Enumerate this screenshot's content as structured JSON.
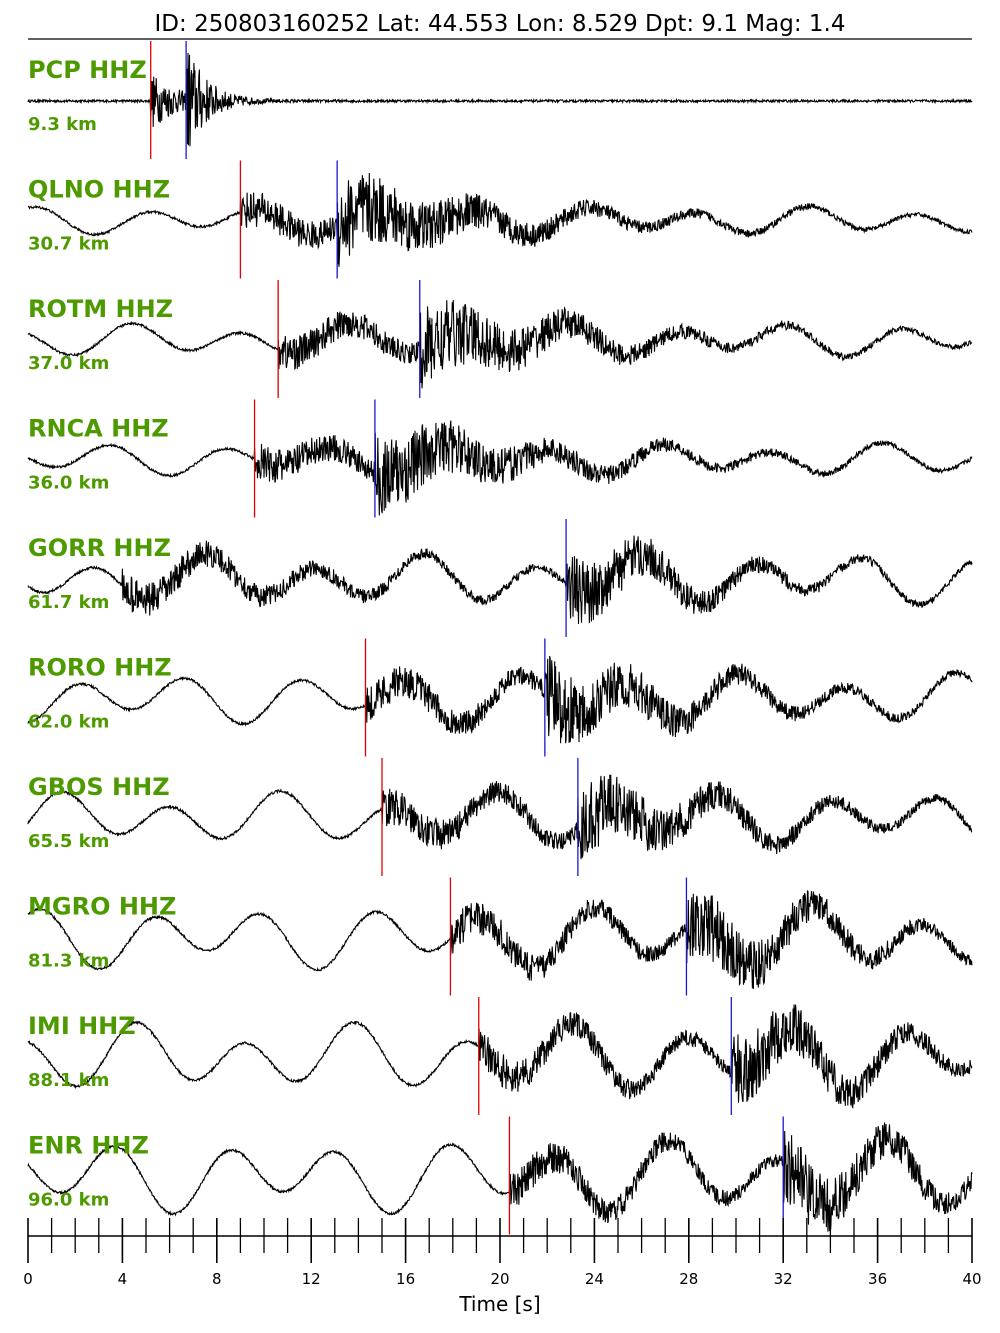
{
  "title": "ID: 250803160252 Lat:  44.553 Lon:   8.529 Dpt:     9.1 Mag:   1.4",
  "chart_data": {
    "type": "line",
    "xlabel": "Time [s]",
    "xlim": [
      0,
      40
    ],
    "xticks": [
      0,
      4,
      8,
      12,
      16,
      20,
      24,
      28,
      32,
      36,
      40
    ],
    "minor_tick_step": 1,
    "colors": {
      "label": "#4d9a00",
      "p_pick": "#e00000",
      "s_pick": "#1a1acc",
      "trace": "#000000"
    },
    "traces": [
      {
        "station": "PCP HHZ",
        "distance": "9.3 km",
        "p_pick": 5.2,
        "s_pick": 6.7
      },
      {
        "station": "QLNO HHZ",
        "distance": "30.7 km",
        "p_pick": 9.0,
        "s_pick": 13.1
      },
      {
        "station": "ROTM HHZ",
        "distance": "37.0 km",
        "p_pick": 10.6,
        "s_pick": 16.6
      },
      {
        "station": "RNCA HHZ",
        "distance": "36.0 km",
        "p_pick": 9.6,
        "s_pick": 14.7
      },
      {
        "station": "GORR HHZ",
        "distance": "61.7 km",
        "p_pick": null,
        "s_pick": 22.8
      },
      {
        "station": "RORO HHZ",
        "distance": "62.0 km",
        "p_pick": 14.3,
        "s_pick": 21.9
      },
      {
        "station": "GBOS HHZ",
        "distance": "65.5 km",
        "p_pick": 15.0,
        "s_pick": 23.3
      },
      {
        "station": "MGRO HHZ",
        "distance": "81.3 km",
        "p_pick": 17.9,
        "s_pick": 27.9
      },
      {
        "station": "IMI HHZ",
        "distance": "88.1 km",
        "p_pick": 19.1,
        "s_pick": 29.8
      },
      {
        "station": "ENR HHZ",
        "distance": "96.0 km",
        "p_pick": 20.4,
        "s_pick": 32.0
      }
    ]
  }
}
